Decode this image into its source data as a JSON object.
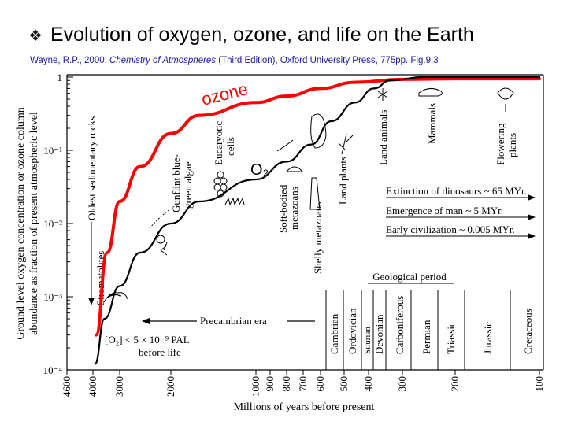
{
  "slide": {
    "title": "Evolution of oxygen, ozone, and life on the Earth",
    "bullet": "❖",
    "citation_authors": "Wayne, R.P., 2000: ",
    "citation_book": "Chemistry of Atmospheres",
    "citation_rest": " (Third Edition), Oxford University Press, 775pp. Fig.9.3"
  },
  "chart_data": {
    "type": "line",
    "title": "",
    "xlabel": "Millions of years before present",
    "ylabel_line1": "Ground level oxygen concentration or ozone column",
    "ylabel_line2": "abundance as fraction of present atmospheric level",
    "x_scale": "reciprocal",
    "y_scale": "log",
    "xlim": [
      4600,
      100
    ],
    "ylim": [
      0.0001,
      1
    ],
    "x_ticks": [
      "4600",
      "4000",
      "3000",
      "2000",
      "1000",
      "900",
      "800",
      "700",
      "600",
      "500",
      "400",
      "300",
      "200",
      "100"
    ],
    "y_ticks": [
      "10⁻⁴",
      "10⁻³",
      "10⁻²",
      "10⁻¹",
      "1"
    ],
    "series": [
      {
        "name": "ozone",
        "color": "#ff0000",
        "points": [
          [
            3850,
            0.0003
          ],
          [
            3400,
            0.004
          ],
          [
            3000,
            0.02
          ],
          [
            2500,
            0.06
          ],
          [
            2000,
            0.17
          ],
          [
            1500,
            0.3
          ],
          [
            1000,
            0.45
          ],
          [
            800,
            0.55
          ],
          [
            600,
            0.7
          ],
          [
            450,
            0.85
          ],
          [
            300,
            0.93
          ],
          [
            200,
            0.95
          ],
          [
            100,
            0.95
          ]
        ]
      },
      {
        "name": "O₂",
        "color": "#000000",
        "points": [
          [
            3900,
            0.00012
          ],
          [
            3500,
            0.0005
          ],
          [
            3000,
            0.0014
          ],
          [
            2500,
            0.004
          ],
          [
            2000,
            0.01
          ],
          [
            1500,
            0.02
          ],
          [
            1000,
            0.04
          ],
          [
            800,
            0.07
          ],
          [
            650,
            0.12
          ],
          [
            550,
            0.25
          ],
          [
            450,
            0.45
          ],
          [
            380,
            0.7
          ],
          [
            330,
            0.9
          ],
          [
            250,
            1.0
          ],
          [
            100,
            1.0
          ]
        ]
      }
    ],
    "annotations": {
      "rock_labels": [
        "Oldest sedimentary rocks",
        "Stromatolites"
      ],
      "life_labels": [
        "Gunflint blue-",
        "green algae",
        "Eucaryotic",
        "cells",
        "Soft-bodied",
        "metazoans",
        "Shelly metazoans",
        "Land plants",
        "Land animals",
        "Mammals",
        "Flowering",
        "plants"
      ],
      "events": [
        "Extinction of dinosaurs ~ 65 MYr.",
        "Emergence of man ~ 5 MYr.",
        "Early civilization ~ 0.005 MYr."
      ],
      "geological_period_title": "Geological period",
      "periods": [
        "Cambrian",
        "Ordovician",
        "Silurian",
        "Devonian",
        "Carboniferous",
        "Permian",
        "Triassic",
        "Jurassic",
        "Cretaceous"
      ],
      "precambrian": "Precambrian era",
      "before_life_line1": "[O₂] < 5 × 10⁻⁹ PAL",
      "before_life_line2": "before life"
    }
  }
}
